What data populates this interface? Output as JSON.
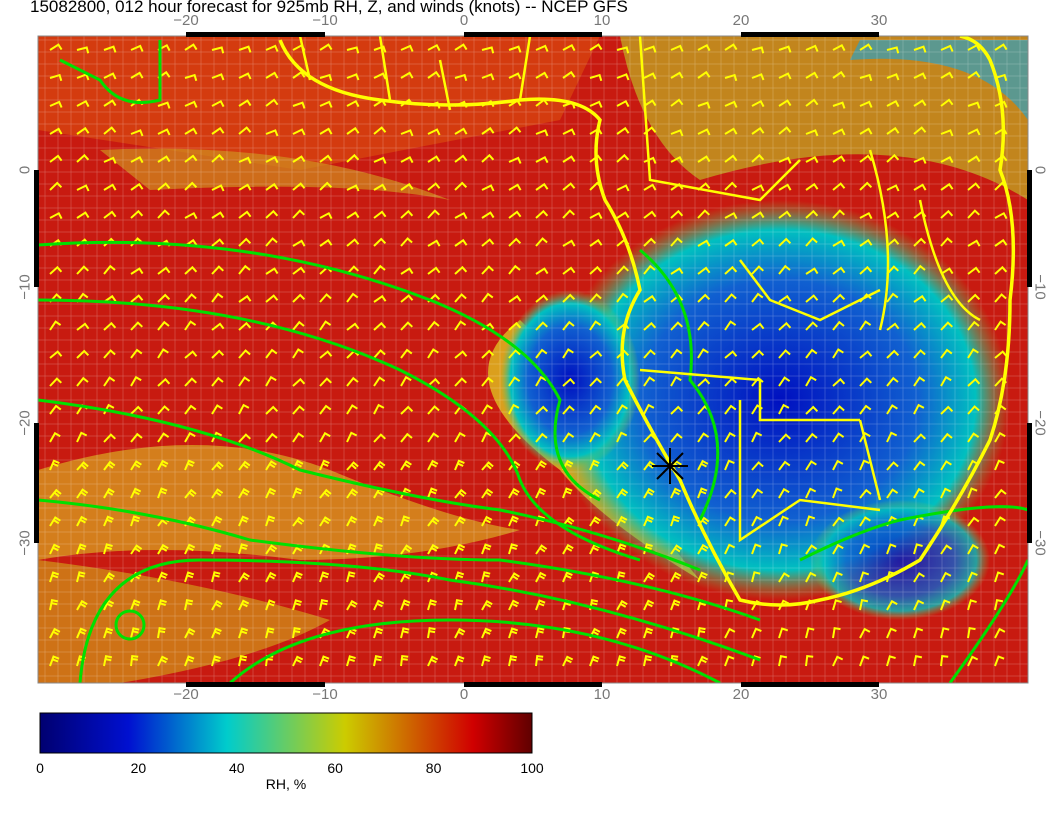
{
  "title": "15082800, 012 hour forecast for 925mb RH, Z, and winds (knots) -- NCEP GFS",
  "map": {
    "lon_ticks": [
      "−20",
      "−10",
      "0",
      "10",
      "20",
      "30"
    ],
    "lat_ticks": [
      "0",
      "−10",
      "−20",
      "−30"
    ],
    "colors": {
      "coastline": "#ffff00",
      "contours": "#00e000",
      "barbs": "#ffff00",
      "marker": "#000000"
    },
    "marker_icon": "asterisk"
  },
  "colorbar": {
    "label": "RH, %",
    "ticks": [
      "0",
      "20",
      "40",
      "60",
      "80",
      "100"
    ],
    "range": [
      0,
      100
    ],
    "colors": [
      "#000070",
      "#0010d0",
      "#00cccc",
      "#cccc00",
      "#d00000",
      "#600000"
    ]
  }
}
